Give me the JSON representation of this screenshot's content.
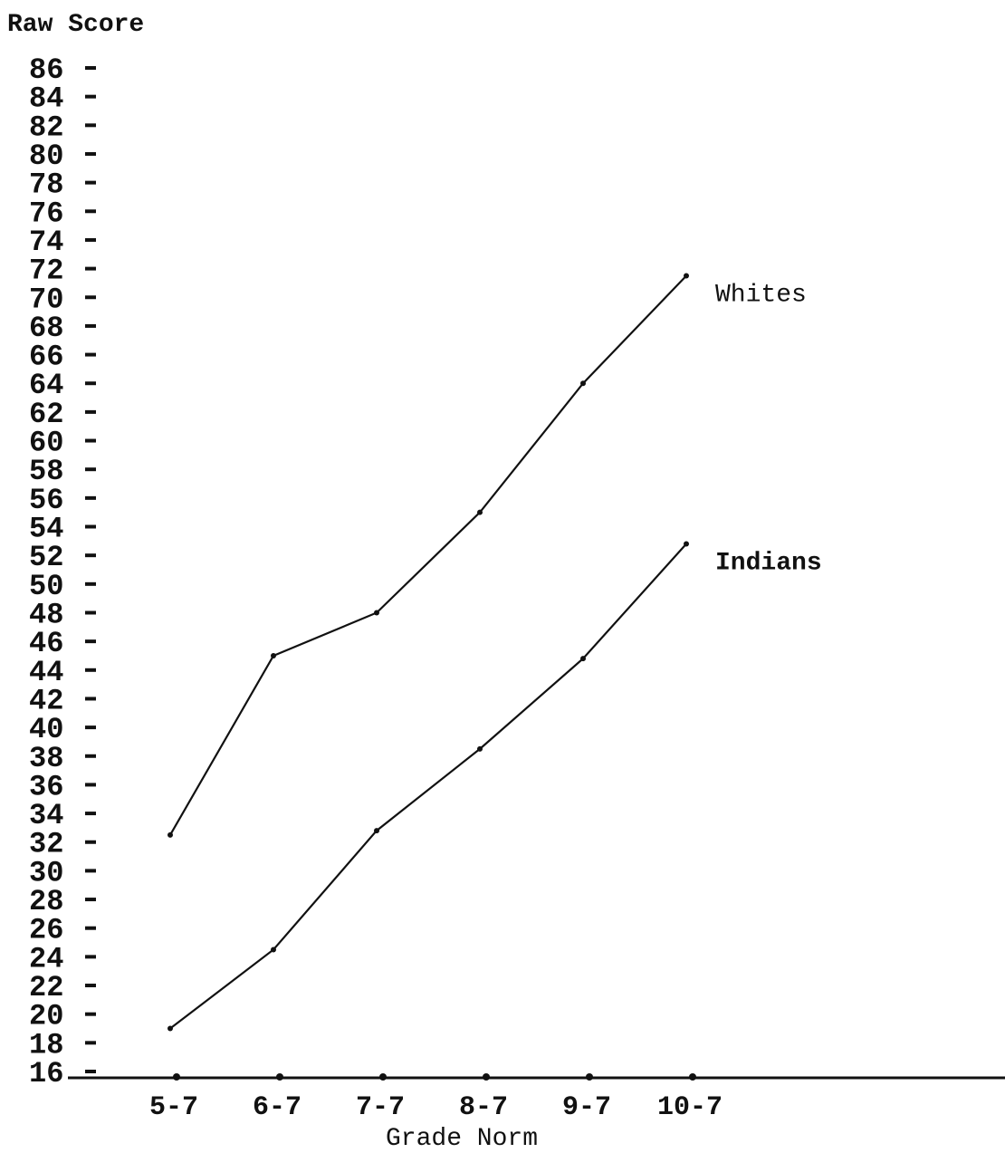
{
  "chart_data": {
    "type": "line",
    "ylabel": "Raw Score",
    "xlabel": "Grade Norm",
    "categories": [
      "5-7",
      "6-7",
      "7-7",
      "8-7",
      "9-7",
      "10-7"
    ],
    "yticks": [
      86,
      84,
      82,
      80,
      78,
      76,
      74,
      72,
      70,
      68,
      66,
      64,
      62,
      60,
      58,
      56,
      54,
      52,
      50,
      48,
      46,
      44,
      42,
      40,
      38,
      36,
      34,
      32,
      30,
      28,
      26,
      24,
      22,
      20,
      18,
      16
    ],
    "ylim": [
      16,
      86
    ],
    "grid": false,
    "series": [
      {
        "name": "Whites",
        "values": [
          32.5,
          45,
          48,
          55,
          64,
          71.5
        ]
      },
      {
        "name": "Indians",
        "values": [
          19,
          24.5,
          32.8,
          38.5,
          44.8,
          52.8
        ]
      }
    ],
    "colors": {
      "line": "#111111",
      "axis": "#111111",
      "background": "#ffffff"
    }
  }
}
